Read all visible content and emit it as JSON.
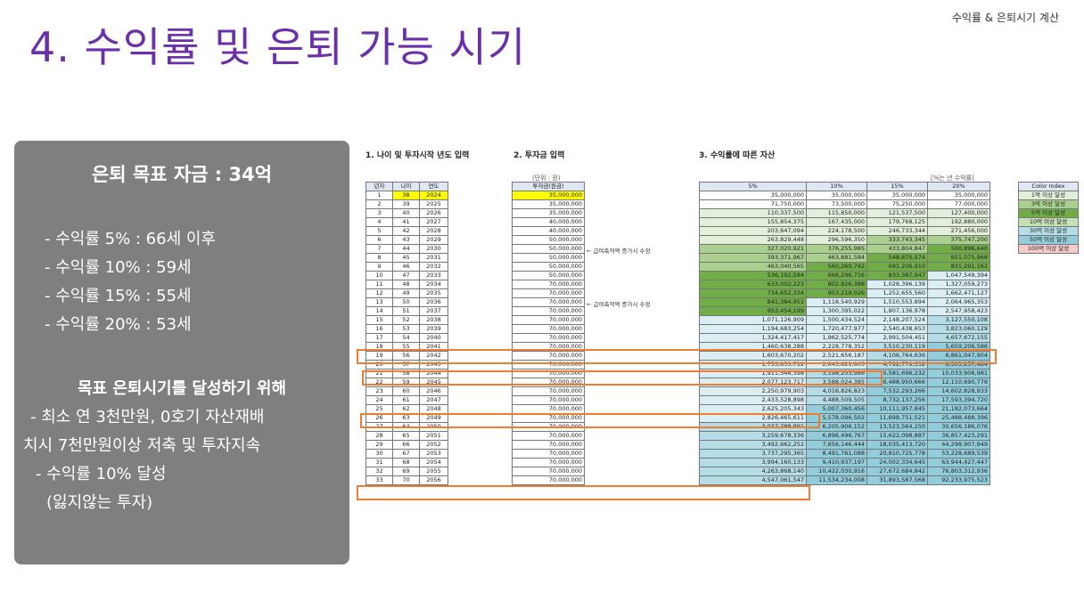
{
  "header": {
    "topright": "수익률 & 은퇴시기 계산",
    "title": "4. 수익률 및 은퇴 가능 시기"
  },
  "panel": {
    "title": "은퇴 목표 자금 : 34억",
    "rates": [
      "- 수익률   5% : 66세 이후",
      "- 수익률 10% : 59세",
      "- 수익률 15% : 55세",
      "- 수익률 20% : 53세"
    ],
    "goal_title": "목표 은퇴시기를 달성하기 위해",
    "goal_lines": [
      "- 최소 연 3천만원, 0호기 자산재배",
      "치시 7천만원이상 저축 및 투자지속",
      "- 수익률 10% 달성",
      "(잃지않는 투자)"
    ]
  },
  "sheet": {
    "section1": "1. 나이 및 투자시작 년도 입력",
    "section2": "2. 투자금 입력",
    "section3": "3. 수익률에 따른 자산",
    "unit": "(단위 : 원)",
    "rate_note": "[%는 년 수익률]",
    "col_headers": [
      "년차",
      "나이",
      "연도"
    ],
    "invest_header": "투자금(원금)",
    "rate_headers": [
      "5%",
      "10%",
      "15%",
      "20%"
    ],
    "note1": "← 급여축적액 증가시 수정",
    "note2": "← 급여축적액 증가시 수정",
    "legend_title": "Color Index",
    "legend": [
      "1억 이상 달성",
      "3억 이상 달성",
      "5억 이상 달성",
      "10억 이상 달성",
      "30억 이상 달성",
      "50억 이상 달성",
      "100억 이상 달성"
    ],
    "legend_colors": [
      "#e2efda",
      "#a9d08e",
      "#70ad47",
      "#c6e0b4",
      "#b4dde8",
      "#92cddc",
      "#f4cccc"
    ],
    "rows": [
      [
        "1",
        "38",
        "2024",
        "35,000,000",
        "35,000,000",
        "35,000,000",
        "35,000,000",
        "35,000,000"
      ],
      [
        "2",
        "39",
        "2025",
        "35,000,000",
        "71,750,000",
        "73,500,000",
        "75,250,000",
        "77,000,000"
      ],
      [
        "3",
        "40",
        "2026",
        "35,000,000",
        "110,337,500",
        "115,850,000",
        "121,537,500",
        "127,400,000"
      ],
      [
        "4",
        "41",
        "2027",
        "40,000,000",
        "155,854,375",
        "167,435,000",
        "179,768,125",
        "192,880,000"
      ],
      [
        "5",
        "42",
        "2028",
        "40,000,000",
        "203,647,094",
        "224,178,500",
        "246,733,344",
        "271,456,000"
      ],
      [
        "6",
        "43",
        "2029",
        "50,000,000",
        "263,829,448",
        "296,596,350",
        "333,743,345",
        "375,747,200"
      ],
      [
        "7",
        "44",
        "2030",
        "50,000,000",
        "327,020,921",
        "376,255,985",
        "433,804,847",
        "500,896,640"
      ],
      [
        "8",
        "45",
        "2031",
        "50,000,000",
        "393,371,967",
        "463,881,584",
        "548,875,574",
        "651,075,968"
      ],
      [
        "9",
        "46",
        "2032",
        "50,000,000",
        "463,040,565",
        "560,269,742",
        "681,206,910",
        "831,291,162"
      ],
      [
        "10",
        "47",
        "2033",
        "50,000,000",
        "536,192,594",
        "666,296,716",
        "833,387,947",
        "1,047,549,394"
      ],
      [
        "11",
        "48",
        "2034",
        "70,000,000",
        "633,002,223",
        "802,926,388",
        "1,028,396,139",
        "1,327,059,273"
      ],
      [
        "12",
        "49",
        "2035",
        "70,000,000",
        "734,652,334",
        "953,219,026",
        "1,252,655,560",
        "1,662,471,127"
      ],
      [
        "13",
        "50",
        "2036",
        "70,000,000",
        "841,384,951",
        "1,118,540,929",
        "1,510,553,894",
        "2,064,965,353"
      ],
      [
        "14",
        "51",
        "2037",
        "70,000,000",
        "953,454,199",
        "1,300,395,022",
        "1,807,136,978",
        "2,547,958,423"
      ],
      [
        "15",
        "52",
        "2038",
        "70,000,000",
        "1,071,126,909",
        "1,500,434,524",
        "2,148,207,524",
        "3,127,550,108"
      ],
      [
        "16",
        "53",
        "2039",
        "70,000,000",
        "1,194,683,254",
        "1,720,477,977",
        "2,540,438,653",
        "3,823,060,129"
      ],
      [
        "17",
        "54",
        "2040",
        "70,000,000",
        "1,324,417,417",
        "1,962,525,774",
        "2,991,504,451",
        "4,657,672,155"
      ],
      [
        "18",
        "55",
        "2041",
        "70,000,000",
        "1,460,638,288",
        "2,228,778,352",
        "3,510,230,119",
        "5,659,206,586"
      ],
      [
        "19",
        "56",
        "2042",
        "70,000,000",
        "1,603,670,202",
        "2,521,656,187",
        "4,106,764,636",
        "6,861,047,904"
      ],
      [
        "20",
        "57",
        "2043",
        "70,000,000",
        "1,753,853,712",
        "2,843,821,805",
        "4,792,779,332",
        "8,303,257,484"
      ],
      [
        "21",
        "58",
        "2044",
        "70,000,000",
        "1,911,546,398",
        "3,198,203,986",
        "5,581,696,232",
        "10,033,908,981"
      ],
      [
        "22",
        "59",
        "2045",
        "70,000,000",
        "2,077,123,717",
        "3,588,024,385",
        "6,488,950,666",
        "12,110,690,778"
      ],
      [
        "23",
        "60",
        "2046",
        "70,000,000",
        "2,250,979,903",
        "4,016,826,823",
        "7,532,293,266",
        "14,602,828,933"
      ],
      [
        "24",
        "61",
        "2047",
        "70,000,000",
        "2,433,528,898",
        "4,488,509,505",
        "8,732,137,256",
        "17,593,394,720"
      ],
      [
        "25",
        "62",
        "2048",
        "70,000,000",
        "2,625,205,343",
        "5,007,360,456",
        "10,111,957,845",
        "21,182,073,664"
      ],
      [
        "26",
        "63",
        "2049",
        "70,000,000",
        "2,826,465,611",
        "5,578,096,502",
        "11,698,751,521",
        "25,488,488,396"
      ],
      [
        "27",
        "64",
        "2050",
        "70,000,000",
        "3,037,788,891",
        "6,205,906,152",
        "13,523,564,250",
        "30,656,186,076"
      ],
      [
        "28",
        "65",
        "2051",
        "70,000,000",
        "3,259,678,336",
        "6,896,496,767",
        "15,622,098,887",
        "36,857,423,291"
      ],
      [
        "29",
        "66",
        "2052",
        "70,000,000",
        "3,492,662,252",
        "7,656,146,444",
        "18,035,413,720",
        "44,298,907,949"
      ],
      [
        "30",
        "67",
        "2053",
        "70,000,000",
        "3,737,295,365",
        "8,491,761,088",
        "20,810,725,778",
        "53,228,689,539"
      ],
      [
        "31",
        "68",
        "2054",
        "70,000,000",
        "3,994,160,133",
        "9,410,937,197",
        "24,002,334,645",
        "63,944,427,447"
      ],
      [
        "32",
        "69",
        "2055",
        "70,000,000",
        "4,263,868,140",
        "10,422,030,916",
        "27,672,684,842",
        "76,803,312,936"
      ],
      [
        "33",
        "70",
        "2056",
        "70,000,000",
        "4,547,061,547",
        "11,534,234,008",
        "31,893,587,568",
        "92,233,975,523"
      ]
    ]
  }
}
